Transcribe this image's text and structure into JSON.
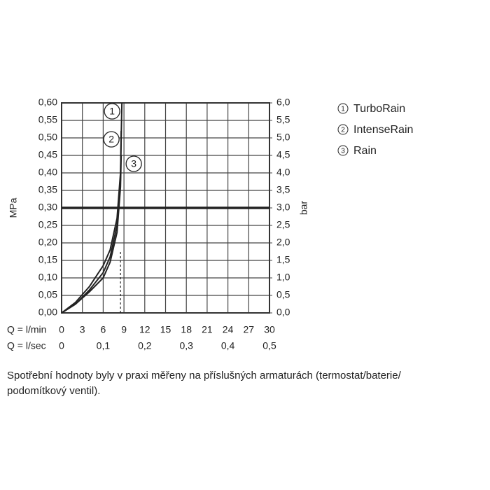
{
  "chart_data": {
    "type": "line",
    "ylabel": "MPa",
    "y2label": "bar",
    "xlabel": "Q = l/min",
    "x2label": "Q = l/sec",
    "xlim": [
      0,
      30
    ],
    "xticks": [
      0,
      3,
      6,
      9,
      12,
      15,
      18,
      21,
      24,
      27,
      30
    ],
    "x2lim": [
      0,
      0.5
    ],
    "x2ticks": [
      0,
      {
        "value": 0.1,
        "label": "0,1"
      },
      {
        "value": 0.2,
        "label": "0,2"
      },
      {
        "value": 0.3,
        "label": "0,3"
      },
      {
        "value": 0.4,
        "label": "0,4"
      },
      {
        "value": 0.5,
        "label": "0,5"
      }
    ],
    "ylim": [
      0,
      0.6
    ],
    "yticks": [
      {
        "value": 0,
        "label": "0,00"
      },
      {
        "value": 0.05,
        "label": "0,05"
      },
      {
        "value": 0.1,
        "label": "0,10"
      },
      {
        "value": 0.15,
        "label": "0,15"
      },
      {
        "value": 0.2,
        "label": "0,20"
      },
      {
        "value": 0.25,
        "label": "0,25"
      },
      {
        "value": 0.3,
        "label": "0,30"
      },
      {
        "value": 0.35,
        "label": "0,35"
      },
      {
        "value": 0.4,
        "label": "0,40"
      },
      {
        "value": 0.45,
        "label": "0,45"
      },
      {
        "value": 0.5,
        "label": "0,50"
      },
      {
        "value": 0.55,
        "label": "0,55"
      },
      {
        "value": 0.6,
        "label": "0,60"
      }
    ],
    "y2lim": [
      0,
      6
    ],
    "y2ticks": [
      {
        "value": 0,
        "label": "0,0"
      },
      {
        "value": 0.5,
        "label": "0,5"
      },
      {
        "value": 1,
        "label": "1,0"
      },
      {
        "value": 1.5,
        "label": "1,5"
      },
      {
        "value": 2,
        "label": "2,0"
      },
      {
        "value": 2.5,
        "label": "2,5"
      },
      {
        "value": 3,
        "label": "3,0"
      },
      {
        "value": 3.5,
        "label": "3,5"
      },
      {
        "value": 4,
        "label": "4,0"
      },
      {
        "value": 4.5,
        "label": "4,5"
      },
      {
        "value": 5,
        "label": "5,0"
      },
      {
        "value": 5.5,
        "label": "5,5"
      },
      {
        "value": 6,
        "label": "6,0"
      }
    ],
    "grid": true,
    "reference_y": 0.3,
    "dashed_x": 8.5,
    "dashed_y_top": 0.18,
    "series": [
      {
        "name": "TurboRain",
        "label": "1",
        "color": "#222222",
        "x": [
          0,
          2,
          4,
          6,
          7,
          8,
          8.5,
          8.7
        ],
        "values": [
          0,
          0.03,
          0.075,
          0.135,
          0.18,
          0.27,
          0.4,
          0.6
        ]
      },
      {
        "name": "IntenseRain",
        "label": "2",
        "color": "#222222",
        "x": [
          0,
          2,
          4,
          6,
          7,
          8,
          8.5,
          8.6
        ],
        "values": [
          0,
          0.025,
          0.065,
          0.115,
          0.16,
          0.25,
          0.38,
          0.52
        ]
      },
      {
        "name": "Rain",
        "label": "3",
        "color": "#222222",
        "x": [
          0,
          2,
          4,
          6,
          7,
          8,
          8.5,
          8.6
        ],
        "values": [
          0,
          0.025,
          0.06,
          0.1,
          0.145,
          0.23,
          0.36,
          0.45
        ]
      }
    ],
    "note": [
      "Spotřební hodnoty byly v praxi měřeny na příslušných armaturách (termostat/baterie/",
      "podomítkový ventil)."
    ]
  }
}
